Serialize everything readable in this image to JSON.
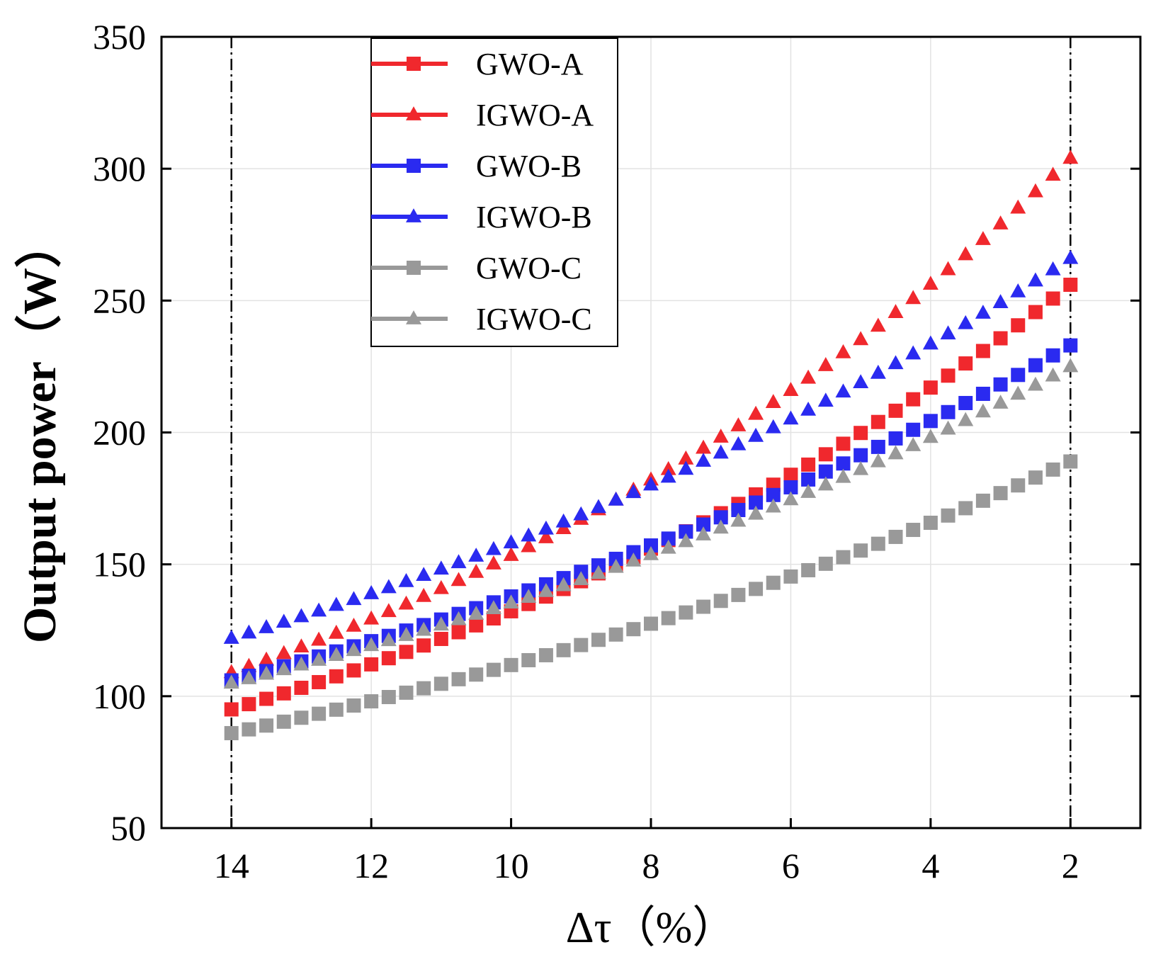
{
  "chart_data": {
    "type": "scatter",
    "title": "",
    "xlabel": "Δτ（%）",
    "ylabel": "Output power（W）",
    "xlim": [
      15,
      1
    ],
    "ylim": [
      50,
      350
    ],
    "x_reversed": true,
    "xticks": [
      14,
      12,
      10,
      8,
      6,
      4,
      2
    ],
    "yticks": [
      50,
      100,
      150,
      200,
      250,
      300,
      350
    ],
    "grid": true,
    "reference_lines_x": [
      14,
      2
    ],
    "legend_position": "top-left",
    "x_start": 14,
    "x_end": 2,
    "num_points": 49,
    "series": [
      {
        "name": "GWO-A",
        "marker": "square",
        "color": "#f0282d",
        "start": 95,
        "end": 256,
        "shape": "curved"
      },
      {
        "name": "IGWO-A",
        "marker": "triangle",
        "color": "#f0282d",
        "start": 109,
        "end": 304,
        "shape": "curved"
      },
      {
        "name": "GWO-B",
        "marker": "square",
        "color": "#2a2af0",
        "start": 106,
        "end": 233,
        "shape": "curved"
      },
      {
        "name": "IGWO-B",
        "marker": "triangle",
        "color": "#2a2af0",
        "start": 122,
        "end": 266,
        "shape": "curved"
      },
      {
        "name": "GWO-C",
        "marker": "square",
        "color": "#999999",
        "start": 86,
        "end": 189,
        "shape": "curved"
      },
      {
        "name": "IGWO-C",
        "marker": "triangle",
        "color": "#999999",
        "start": 105,
        "end": 225,
        "shape": "curved"
      }
    ]
  }
}
